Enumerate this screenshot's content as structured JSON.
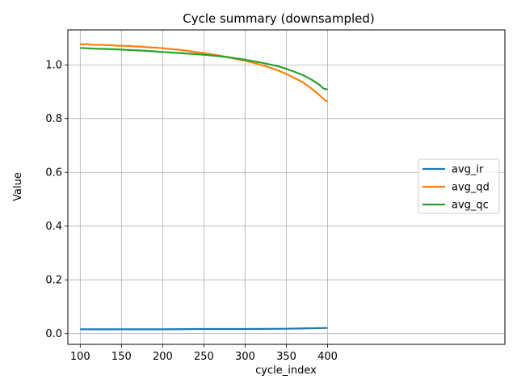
{
  "chart_data": {
    "type": "line",
    "title": "Cycle summary (downsampled)",
    "xlabel": "cycle_index",
    "ylabel": "Value",
    "xlim": [
      85,
      615
    ],
    "ylim": [
      -0.04,
      1.13
    ],
    "xticks": [
      100,
      150,
      200,
      250,
      300,
      350,
      400
    ],
    "yticks": [
      0.0,
      0.2,
      0.4,
      0.6,
      0.8,
      1.0
    ],
    "ytick_labels": [
      "0.0",
      "0.2",
      "0.4",
      "0.6",
      "0.8",
      "1.0"
    ],
    "grid": true,
    "legend_position": "center-right",
    "series": [
      {
        "name": "avg_ir",
        "color": "#1f77b4",
        "x": [
          100,
          150,
          200,
          250,
          300,
          350,
          400
        ],
        "values": [
          0.016,
          0.016,
          0.016,
          0.017,
          0.017,
          0.018,
          0.021
        ]
      },
      {
        "name": "avg_qd",
        "color": "#ff7f0e",
        "x": [
          100,
          104,
          108,
          112,
          116,
          120,
          124,
          128,
          132,
          136,
          140,
          144,
          148,
          152,
          156,
          160,
          164,
          168,
          172,
          176,
          180,
          184,
          188,
          192,
          196,
          200,
          210,
          220,
          230,
          240,
          250,
          260,
          270,
          280,
          290,
          300,
          310,
          320,
          330,
          340,
          350,
          360,
          370,
          380,
          390,
          396,
          400
        ],
        "values": [
          1.077,
          1.076,
          1.078,
          1.075,
          1.075,
          1.074,
          1.075,
          1.074,
          1.073,
          1.073,
          1.073,
          1.071,
          1.071,
          1.071,
          1.07,
          1.07,
          1.069,
          1.068,
          1.068,
          1.067,
          1.066,
          1.065,
          1.064,
          1.064,
          1.063,
          1.062,
          1.059,
          1.056,
          1.052,
          1.048,
          1.044,
          1.039,
          1.034,
          1.028,
          1.021,
          1.015,
          1.008,
          0.999,
          0.99,
          0.979,
          0.966,
          0.951,
          0.935,
          0.913,
          0.888,
          0.87,
          0.863
        ]
      },
      {
        "name": "avg_qc",
        "color": "#2ca02c",
        "x": [
          100,
          120,
          140,
          160,
          180,
          200,
          220,
          240,
          260,
          280,
          300,
          320,
          340,
          350,
          360,
          370,
          380,
          390,
          395,
          400
        ],
        "values": [
          1.063,
          1.06,
          1.058,
          1.055,
          1.052,
          1.048,
          1.044,
          1.04,
          1.035,
          1.028,
          1.019,
          1.008,
          0.995,
          0.985,
          0.974,
          0.962,
          0.946,
          0.926,
          0.912,
          0.908
        ]
      }
    ]
  }
}
